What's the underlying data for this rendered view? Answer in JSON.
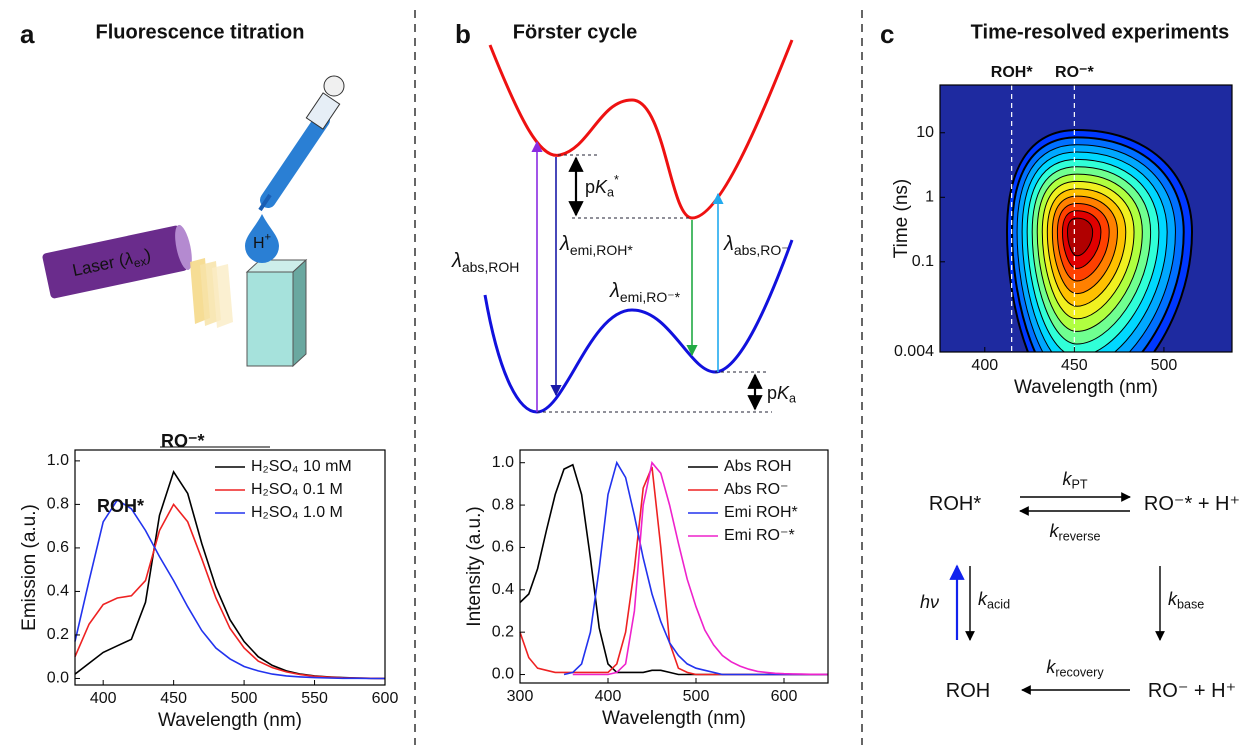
{
  "panels": [
    {
      "label": "a",
      "title": "Fluorescence titration"
    },
    {
      "label": "b",
      "title": "Förster cycle"
    },
    {
      "label": "c",
      "title": "Time-resolved experiments"
    }
  ],
  "illustration": {
    "laser": {
      "text": "Laser (",
      "symbol": "λ",
      "sub": "ex",
      "close": ")"
    },
    "proton": {
      "text": "H",
      "sup": "+"
    }
  },
  "cycle": {
    "abs_roh": {
      "symbol": "λ",
      "sub": "abs,ROH"
    },
    "emi_roh": {
      "symbol": "λ",
      "sub": "emi,ROH*"
    },
    "pka_excited": {
      "text": "p",
      "symbol": "K",
      "sub": "a",
      "sup": "*"
    },
    "emi_ro": {
      "symbol": "λ",
      "sub": "emi,RO⁻*"
    },
    "abs_ro": {
      "symbol": "λ",
      "sub": "abs,RO⁻"
    },
    "pka": {
      "text": "p",
      "symbol": "K",
      "sub": "a"
    }
  },
  "scheme": {
    "roh_excited": {
      "text": "ROH*"
    },
    "ro_excited": {
      "text": "RO⁻* + H⁺"
    },
    "roh": {
      "text": "ROH"
    },
    "ro": {
      "text": "RO⁻ + H⁺"
    },
    "k_pt": {
      "symbol": "k",
      "sub": "PT"
    },
    "k_reverse": {
      "symbol": "k",
      "sub": "reverse"
    },
    "k_acid": {
      "symbol": "k",
      "sub": "acid"
    },
    "k_base": {
      "symbol": "k",
      "sub": "base"
    },
    "k_recovery": {
      "symbol": "k",
      "sub": "recovery"
    },
    "h_nu": {
      "symbol": "hν"
    }
  },
  "chart_data": [
    {
      "type": "line",
      "x_label": "Wavelength (nm)",
      "y_label": "Emission (a.u.)",
      "legend": "upper right",
      "annotations": [
        "ROH*",
        "RO⁻*"
      ],
      "x": [
        380,
        390,
        400,
        410,
        420,
        430,
        440,
        450,
        460,
        470,
        480,
        490,
        500,
        510,
        520,
        530,
        540,
        550,
        560,
        570,
        580,
        590,
        600
      ],
      "series": [
        {
          "name": "H₂SO₄ 10 mM",
          "color": "#000000",
          "values": [
            0.02,
            0.07,
            0.12,
            0.15,
            0.18,
            0.35,
            0.75,
            0.95,
            0.85,
            0.62,
            0.42,
            0.27,
            0.17,
            0.1,
            0.06,
            0.035,
            0.02,
            0.012,
            0.007,
            0.004,
            0.002,
            0.001,
            0
          ]
        },
        {
          "name": "H₂SO₄ 0.1 M",
          "color": "#ee2222",
          "values": [
            0.1,
            0.25,
            0.34,
            0.37,
            0.38,
            0.45,
            0.68,
            0.8,
            0.72,
            0.55,
            0.37,
            0.23,
            0.14,
            0.08,
            0.05,
            0.03,
            0.018,
            0.01,
            0.006,
            0.003,
            0.002,
            0.001,
            0
          ]
        },
        {
          "name": "H₂SO₄ 1.0 M",
          "color": "#2233ee",
          "values": [
            0.17,
            0.45,
            0.72,
            0.82,
            0.78,
            0.68,
            0.56,
            0.45,
            0.33,
            0.22,
            0.14,
            0.09,
            0.055,
            0.035,
            0.02,
            0.012,
            0.007,
            0.004,
            0.002,
            0.001,
            0.001,
            0,
            0
          ]
        }
      ],
      "xlim": [
        380,
        600
      ],
      "xticks": [
        400,
        450,
        500,
        550,
        600
      ],
      "ylim": [
        -0.03,
        1.05
      ],
      "yticks": [
        {
          "value": 0,
          "label": "0.0"
        },
        0.2,
        0.4,
        0.6,
        0.8,
        {
          "value": 1,
          "label": "1.0"
        }
      ]
    },
    {
      "type": "line",
      "x_label": "Wavelength (nm)",
      "y_label": "Intensity (a.u.)",
      "legend": "upper right",
      "x": [
        300,
        310,
        320,
        330,
        340,
        350,
        360,
        370,
        380,
        390,
        400,
        410,
        420,
        430,
        440,
        450,
        460,
        470,
        480,
        490,
        500,
        510,
        520,
        530,
        540,
        550,
        560,
        570,
        580,
        590,
        600,
        610,
        620,
        630,
        640,
        650
      ],
      "series": [
        {
          "name": "Abs ROH",
          "color": "#000000",
          "values": [
            0.34,
            0.38,
            0.5,
            0.68,
            0.85,
            0.97,
            0.99,
            0.85,
            0.55,
            0.22,
            0.05,
            0.01,
            0.01,
            0.01,
            0.01,
            0.02,
            0.02,
            0.01,
            0,
            0,
            0,
            0,
            0,
            0,
            0,
            0,
            0,
            0,
            0,
            0,
            0,
            0,
            0,
            0,
            0,
            0
          ]
        },
        {
          "name": "Abs RO⁻",
          "color": "#ee2222",
          "values": [
            0.2,
            0.08,
            0.03,
            0.02,
            0.01,
            0.01,
            0.01,
            0.01,
            0.01,
            0.01,
            0.01,
            0.05,
            0.2,
            0.5,
            0.88,
            0.98,
            0.6,
            0.15,
            0.03,
            0.01,
            0,
            0,
            0,
            0,
            0,
            0,
            0,
            0,
            0,
            0,
            0,
            0,
            0,
            0,
            0,
            0
          ]
        },
        {
          "name": "Emi ROH*",
          "color": "#2233ee",
          "values": [
            null,
            null,
            null,
            null,
            null,
            0,
            0.01,
            0.05,
            0.2,
            0.5,
            0.85,
            1.0,
            0.93,
            0.75,
            0.55,
            0.38,
            0.25,
            0.15,
            0.09,
            0.05,
            0.03,
            0.02,
            0.01,
            0,
            0,
            0,
            0,
            0,
            0,
            0,
            0,
            0,
            0,
            0,
            0,
            0
          ]
        },
        {
          "name": "Emi RO⁻*",
          "color": "#ee22cc",
          "values": [
            null,
            null,
            null,
            null,
            null,
            null,
            0,
            0,
            0,
            0,
            0,
            0.01,
            0.05,
            0.3,
            0.8,
            1.0,
            0.95,
            0.8,
            0.62,
            0.45,
            0.32,
            0.21,
            0.14,
            0.09,
            0.06,
            0.04,
            0.025,
            0.015,
            0.01,
            0.006,
            0.004,
            0.003,
            0.002,
            0.001,
            0.001,
            0
          ]
        }
      ],
      "xlim": [
        300,
        650
      ],
      "xticks": [
        300,
        400,
        500,
        600
      ],
      "ylim": [
        -0.04,
        1.06
      ],
      "yticks": [
        {
          "value": 0,
          "label": "0.0"
        },
        0.2,
        0.4,
        0.6,
        0.8,
        {
          "value": 1,
          "label": "1.0"
        }
      ]
    },
    {
      "type": "contour",
      "x_label": "Wavelength (nm)",
      "y_label": "Time (ns)",
      "log_y": true,
      "markers": [
        {
          "label": "ROH*",
          "x": 415
        },
        {
          "label": "RO⁻*",
          "x": 450
        }
      ],
      "xlim": [
        375,
        538
      ],
      "xticks": [
        400,
        450,
        500
      ],
      "ylim": [
        0.004,
        55
      ],
      "yticks": [
        0.004,
        0.1,
        1,
        10
      ]
    }
  ]
}
